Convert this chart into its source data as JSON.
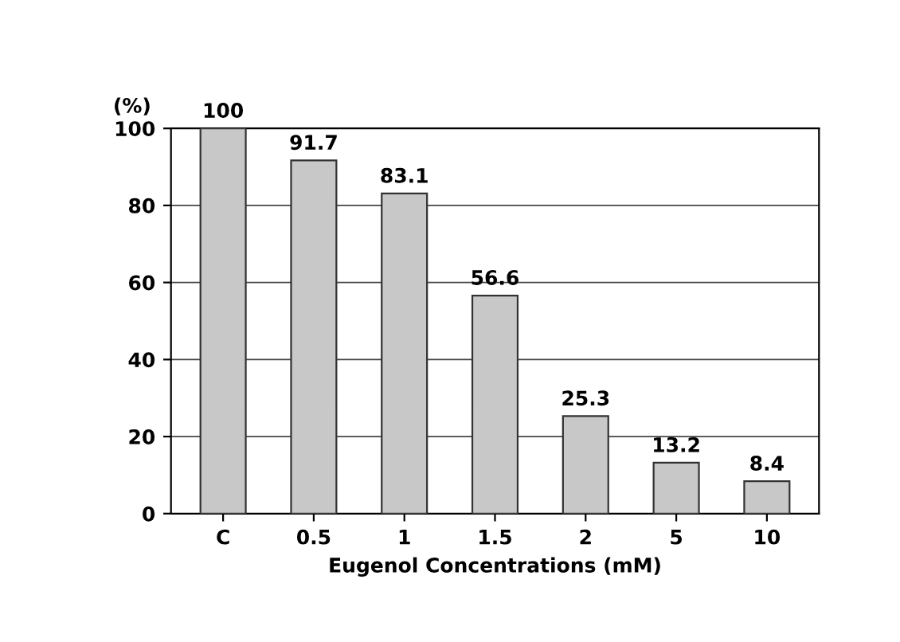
{
  "chart_data": {
    "type": "bar",
    "xlabel": "Eugenol Concentrations (mM)",
    "ylabel": "(%)",
    "categories": [
      "C",
      "0.5",
      "1",
      "1.5",
      "2",
      "5",
      "10"
    ],
    "values": [
      100,
      91.7,
      83.1,
      56.6,
      25.3,
      13.2,
      8.4
    ],
    "color": "#c8c8c8",
    "ylim": [
      0,
      100
    ],
    "yticks": [
      0,
      20,
      40,
      60,
      80,
      100
    ],
    "grid": "y",
    "data_labels": true
  }
}
